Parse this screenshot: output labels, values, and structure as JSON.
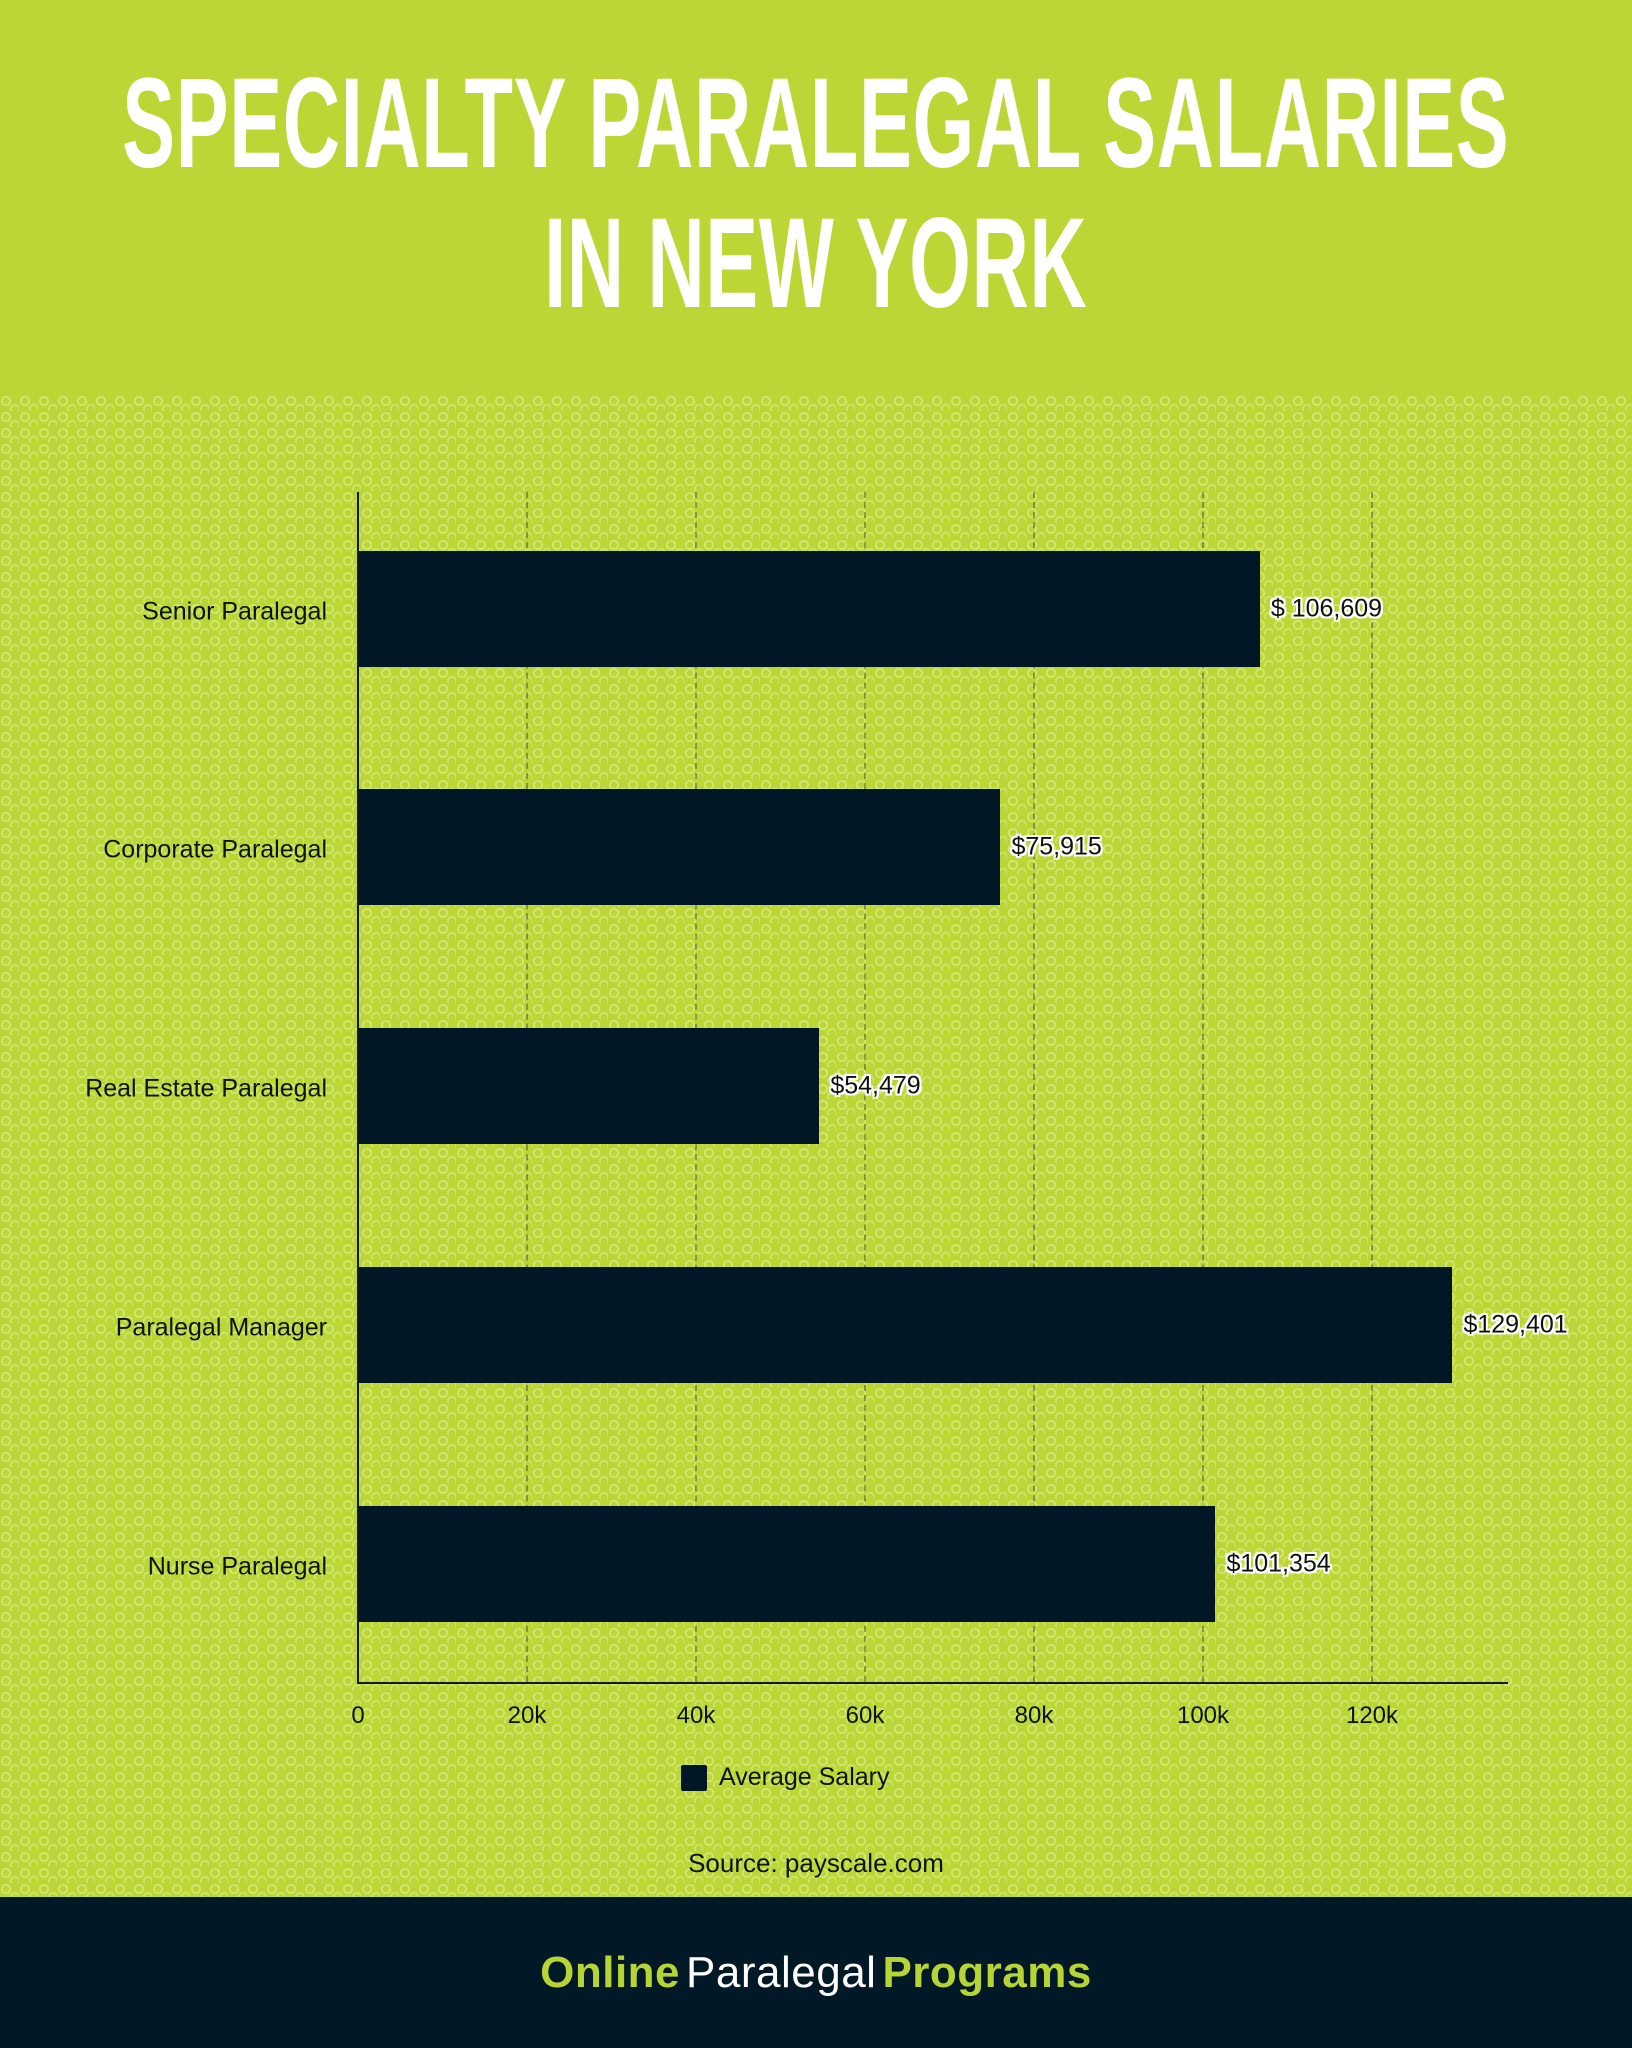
{
  "header": {
    "title_line1": "Specialty Paralegal Salaries",
    "title_line2": "in New York"
  },
  "chart_data": {
    "type": "bar",
    "orientation": "horizontal",
    "title": "Specialty Paralegal Salaries in New York",
    "categories": [
      "Senior Paralegal",
      "Corporate Paralegal",
      "Real Estate Paralegal",
      "Paralegal Manager",
      "Nurse Paralegal"
    ],
    "series": [
      {
        "name": "Average Salary",
        "values": [
          106609,
          75915,
          54479,
          129401,
          101354
        ],
        "color": "#021725"
      }
    ],
    "value_labels": [
      "$ 106,609",
      "$75,915",
      "$54,479",
      "$129,401",
      "$101,354"
    ],
    "xlabel": "",
    "ylabel": "",
    "xlim": [
      0,
      136000
    ],
    "x_ticks": [
      "0",
      "20k",
      "40k",
      "60k",
      "80k",
      "100k",
      "120k"
    ],
    "x_tick_values": [
      0,
      20000,
      40000,
      60000,
      80000,
      100000,
      120000
    ],
    "grid": "vertical dashed",
    "legend_position": "bottom-center"
  },
  "legend": {
    "label": "Average Salary"
  },
  "source": "Source: payscale.com",
  "footer": {
    "brand_part1": "Online",
    "brand_part2": "Paralegal",
    "brand_part3": "Programs"
  },
  "colors": {
    "accent_green": "#BCD636",
    "bar_navy": "#021725",
    "footer_navy": "#011826",
    "title_white": "#FFFFFF"
  }
}
